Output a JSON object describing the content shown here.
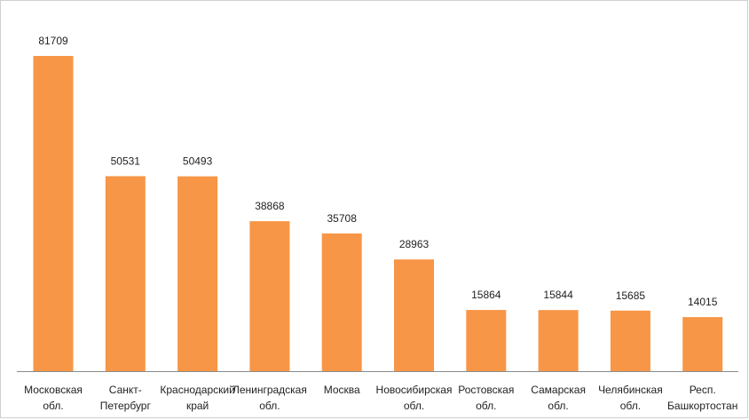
{
  "chart_data": {
    "type": "bar",
    "title": "",
    "xlabel": "",
    "ylabel": "",
    "categories": [
      [
        "Московская",
        "обл."
      ],
      [
        "Санкт-",
        "Петербург"
      ],
      [
        "Краснодарский",
        "край"
      ],
      [
        "Ленинградская",
        "обл."
      ],
      [
        "Москва"
      ],
      [
        "Новосибирская",
        "обл."
      ],
      [
        "Ростовская",
        "обл."
      ],
      [
        "Самарская",
        "обл."
      ],
      [
        "Челябинская",
        "обл."
      ],
      [
        "Респ.",
        "Башкортостан"
      ]
    ],
    "values": [
      81709,
      50531,
      50493,
      38868,
      35708,
      28963,
      15864,
      15844,
      15685,
      14015
    ],
    "ylim": [
      0,
      90000
    ],
    "bar_color": "#F79646",
    "axis_color": "#8c8c8c",
    "grid": false,
    "legend": false,
    "data_labels": true
  }
}
